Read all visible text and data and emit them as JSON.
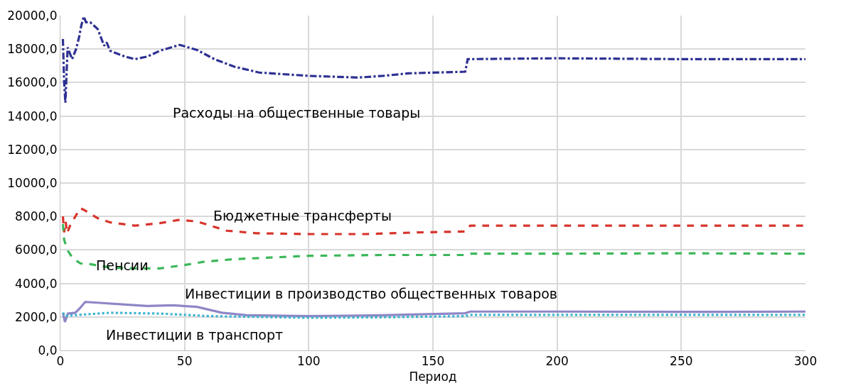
{
  "chart_data": {
    "type": "line",
    "xlabel": "Период",
    "xlim": [
      0,
      300
    ],
    "ylim": [
      0,
      20000
    ],
    "xticks": [
      0,
      50,
      100,
      150,
      200,
      250,
      300
    ],
    "yticks": [
      {
        "value": 0,
        "label": "0,0"
      },
      {
        "value": 2000,
        "label": "2000,0"
      },
      {
        "value": 4000,
        "label": "4000,0"
      },
      {
        "value": 6000,
        "label": "6000,0"
      },
      {
        "value": 8000,
        "label": "8000,0"
      },
      {
        "value": 10000,
        "label": "10000,0"
      },
      {
        "value": 12000,
        "label": "12000,0"
      },
      {
        "value": 14000,
        "label": "14000,0"
      },
      {
        "value": 16000,
        "label": "16000,0"
      },
      {
        "value": 18000,
        "label": "18000,0"
      },
      {
        "value": 20000,
        "label": "20000,0"
      }
    ],
    "grid": true,
    "legend": false,
    "marker": "none",
    "series": [
      {
        "name": "Расходы на общественные товары",
        "color": "#2e3192",
        "line_style": "dashdot",
        "x": [
          1,
          1.5,
          2,
          2.9,
          4.7,
          6.3,
          7.5,
          8.4,
          9.4,
          10.3,
          12,
          15,
          17.6,
          18.6,
          20,
          26,
          30,
          35,
          40,
          48,
          55,
          62,
          70,
          80,
          100,
          120,
          130,
          140,
          163,
          164,
          200,
          250,
          300
        ],
        "values": [
          18600,
          16000,
          14800,
          18100,
          17400,
          18000,
          18700,
          19400,
          19950,
          19600,
          19600,
          19200,
          18200,
          18400,
          17900,
          17550,
          17400,
          17550,
          17900,
          18250,
          17950,
          17400,
          16950,
          16600,
          16400,
          16300,
          16400,
          16550,
          16650,
          17400,
          17450,
          17400,
          17400
        ]
      },
      {
        "name": "Бюджетные трансферты",
        "color": "#d7342b",
        "line_style": "dashed",
        "x": [
          1,
          1.5,
          2.1,
          2.7,
          4,
          6,
          8,
          10,
          15,
          20,
          30,
          40,
          48,
          55,
          67,
          79,
          100,
          123,
          144,
          163,
          165,
          200,
          250,
          300
        ],
        "values": [
          8000,
          7050,
          7700,
          7000,
          7500,
          8000,
          8500,
          8350,
          7900,
          7650,
          7450,
          7600,
          7800,
          7700,
          7150,
          7000,
          6950,
          6950,
          7050,
          7100,
          7450,
          7450,
          7450,
          7450
        ]
      },
      {
        "name": "Пенсии",
        "color": "#3cb75a",
        "line_style": "dashed",
        "x": [
          1,
          1.5,
          3,
          5,
          8,
          12,
          20,
          30,
          40,
          50,
          58,
          70,
          100,
          130,
          163,
          165,
          200,
          250,
          300
        ],
        "values": [
          7550,
          6600,
          5950,
          5500,
          5200,
          5150,
          4950,
          4900,
          4900,
          5100,
          5300,
          5450,
          5650,
          5700,
          5700,
          5780,
          5780,
          5800,
          5780
        ]
      },
      {
        "name": "Инвестиции в производство общественных товаров",
        "color": "#8e87c6",
        "line_style": "solid",
        "x": [
          1,
          1.8,
          3,
          6,
          8,
          10,
          15,
          25,
          35,
          45,
          55,
          65,
          75,
          100,
          130,
          163,
          165,
          200,
          250,
          300
        ],
        "values": [
          2250,
          1700,
          2200,
          2250,
          2550,
          2900,
          2850,
          2750,
          2650,
          2700,
          2600,
          2250,
          2100,
          2050,
          2100,
          2220,
          2320,
          2320,
          2300,
          2320
        ]
      },
      {
        "name": "Инвестиции в транспорт",
        "color": "#3cb4cf",
        "line_style": "dotted",
        "x": [
          1,
          2,
          5,
          10,
          20,
          40,
          60,
          80,
          100,
          130,
          163,
          165,
          200,
          250,
          300
        ],
        "values": [
          2250,
          2050,
          2100,
          2150,
          2250,
          2200,
          2050,
          2000,
          1950,
          1980,
          2050,
          2120,
          2120,
          2120,
          2120
        ]
      }
    ]
  }
}
